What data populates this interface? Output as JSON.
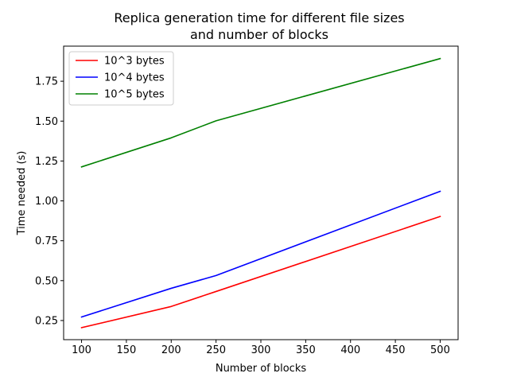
{
  "chart_data": {
    "type": "line",
    "title": "Replica generation time for different file sizes\nand number of blocks",
    "title_lines": [
      "Replica generation time for different file sizes",
      "and number of blocks"
    ],
    "xlabel": "Number of blocks",
    "ylabel": "Time needed (s)",
    "x": [
      100,
      200,
      250,
      500
    ],
    "xlim": [
      80,
      520
    ],
    "ylim": [
      0.13,
      1.97
    ],
    "xticks": [
      100,
      150,
      200,
      250,
      300,
      350,
      400,
      450,
      500
    ],
    "xtick_labels": [
      "100",
      "150",
      "200",
      "250",
      "300",
      "350",
      "400",
      "450",
      "500"
    ],
    "yticks": [
      0.25,
      0.5,
      0.75,
      1.0,
      1.25,
      1.5,
      1.75
    ],
    "ytick_labels": [
      "0.25",
      "0.50",
      "0.75",
      "1.00",
      "1.25",
      "1.50",
      "1.75"
    ],
    "grid": false,
    "legend_position": "upper-left",
    "series": [
      {
        "name": "10^3 bytes",
        "color": "#ff0000",
        "values": [
          0.205,
          0.338,
          0.432,
          0.902
        ]
      },
      {
        "name": "10^4 bytes",
        "color": "#0000ff",
        "values": [
          0.272,
          0.452,
          0.532,
          1.06
        ]
      },
      {
        "name": "10^5 bytes",
        "color": "#008000",
        "values": [
          1.213,
          1.395,
          1.502,
          1.892
        ]
      }
    ]
  }
}
